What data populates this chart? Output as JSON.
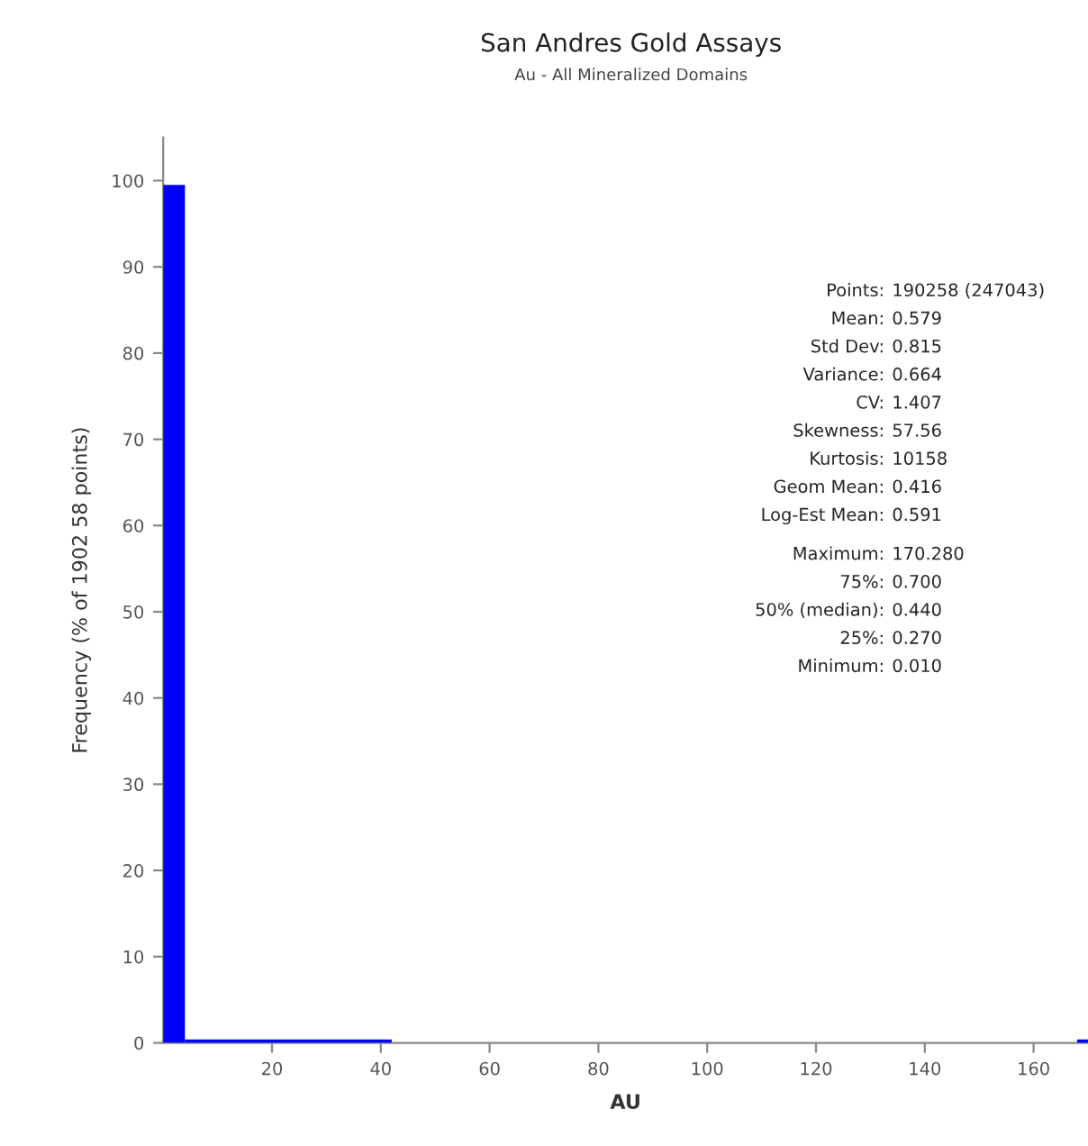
{
  "chart_data": {
    "type": "histogram",
    "title": "San Andres Gold Assays",
    "subtitle": "Au - All Mineralized Domains",
    "xlabel": "AU",
    "ylabel": "Frequency (% of 1902 58 points)",
    "bins": [
      0,
      4,
      42,
      168,
      170
    ],
    "values": [
      99.5,
      0.4,
      0,
      0.4
    ],
    "color": "#0000ff",
    "xlim": [
      0,
      170
    ],
    "xticks": [
      20,
      40,
      60,
      80,
      100,
      120,
      140,
      160
    ],
    "ylim": [
      0,
      105
    ],
    "yticks": [
      0,
      10,
      20,
      30,
      40,
      50,
      60,
      70,
      80,
      90,
      100
    ],
    "grid": false,
    "annotations": [
      "Points: 190258 (247043)",
      "Mean: 0.579",
      "Std Dev: 0.815",
      "Variance: 0.664",
      "CV: 1.407",
      "Skewness: 57.56",
      "Kurtosis: 10158",
      "Geom Mean: 0.416",
      "Log-Est Mean: 0.591",
      "Maximum: 170.280",
      "75%: 0.700",
      "50% (median): 0.440",
      "25%: 0.270",
      "Minimum: 0.010"
    ]
  }
}
